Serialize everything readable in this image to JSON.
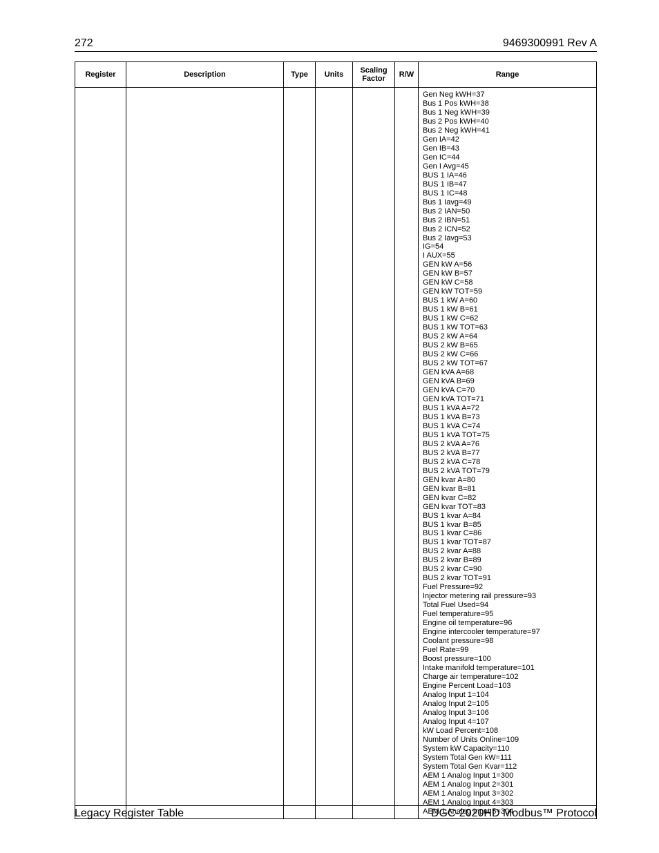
{
  "header": {
    "page_number": "272",
    "doc_id": "9469300991 Rev A"
  },
  "table": {
    "columns": {
      "register": "Register",
      "description": "Description",
      "type": "Type",
      "units": "Units",
      "scaling_factor": "Scaling Factor",
      "rw": "R/W",
      "range": "Range"
    },
    "row": {
      "register": "",
      "description": "",
      "type": "",
      "units": "",
      "scaling_factor": "",
      "rw": "",
      "range_lines": [
        "Gen Neg kWH=37",
        "Bus 1 Pos kWH=38",
        "Bus 1 Neg kWH=39",
        "Bus 2 Pos kWH=40",
        "Bus 2 Neg kWH=41",
        "Gen IA=42",
        "Gen IB=43",
        "Gen IC=44",
        "Gen I Avg=45",
        "BUS 1 IA=46",
        "BUS 1 IB=47",
        "BUS 1 IC=48",
        "Bus 1 Iavg=49",
        "Bus 2 IAN=50",
        "Bus 2 IBN=51",
        "Bus 2 ICN=52",
        "Bus 2 Iavg=53",
        "IG=54",
        "I AUX=55",
        "GEN kW A=56",
        "GEN kW B=57",
        "GEN kW C=58",
        "GEN kW TOT=59",
        "BUS 1 kW A=60",
        "BUS 1 kW B=61",
        "BUS 1 kW C=62",
        "BUS 1 kW TOT=63",
        "BUS 2 kW A=64",
        "BUS 2 kW B=65",
        "BUS 2 kW C=66",
        "BUS 2 kW TOT=67",
        "GEN kVA A=68",
        "GEN kVA B=69",
        "GEN kVA C=70",
        "GEN kVA TOT=71",
        "BUS 1 kVA A=72",
        "BUS 1 kVA B=73",
        "BUS 1 kVA C=74",
        "BUS 1 kVA TOT=75",
        "BUS 2 kVA A=76",
        "BUS 2 kVA B=77",
        "BUS 2 kVA C=78",
        "BUS 2 kVA TOT=79",
        "GEN kvar A=80",
        "GEN kvar B=81",
        "GEN kvar C=82",
        "GEN kvar TOT=83",
        "BUS 1 kvar A=84",
        "BUS 1 kvar B=85",
        "BUS 1 kvar C=86",
        "BUS 1 kvar TOT=87",
        "BUS 2 kvar A=88",
        "BUS 2 kvar B=89",
        "BUS 2 kvar C=90",
        "BUS 2 kvar TOT=91",
        "Fuel Pressure=92",
        "Injector metering rail pressure=93",
        "Total Fuel Used=94",
        "Fuel temperature=95",
        "Engine oil temperature=96",
        "Engine intercooler temperature=97",
        "Coolant pressure=98",
        "Fuel Rate=99",
        "Boost pressure=100",
        "Intake manifold temperature=101",
        "Charge air temperature=102",
        "Engine Percent Load=103",
        "Analog Input 1=104",
        "Analog Input 2=105",
        "Analog Input 3=106",
        "Analog Input 4=107",
        "kW Load Percent=108",
        "Number of Units Online=109",
        "System kW Capacity=110",
        "System Total Gen kW=111",
        "System Total Gen Kvar=112",
        "AEM 1 Analog Input 1=300",
        "AEM 1 Analog Input 2=301",
        "AEM 1 Analog Input 3=302",
        "AEM 1 Analog Input 4=303",
        "AEM 1 Analog Input 5=304"
      ]
    }
  },
  "footer": {
    "left": "Legacy Register Table",
    "right": "DGC-2020HD Modbus™ Protocol"
  }
}
